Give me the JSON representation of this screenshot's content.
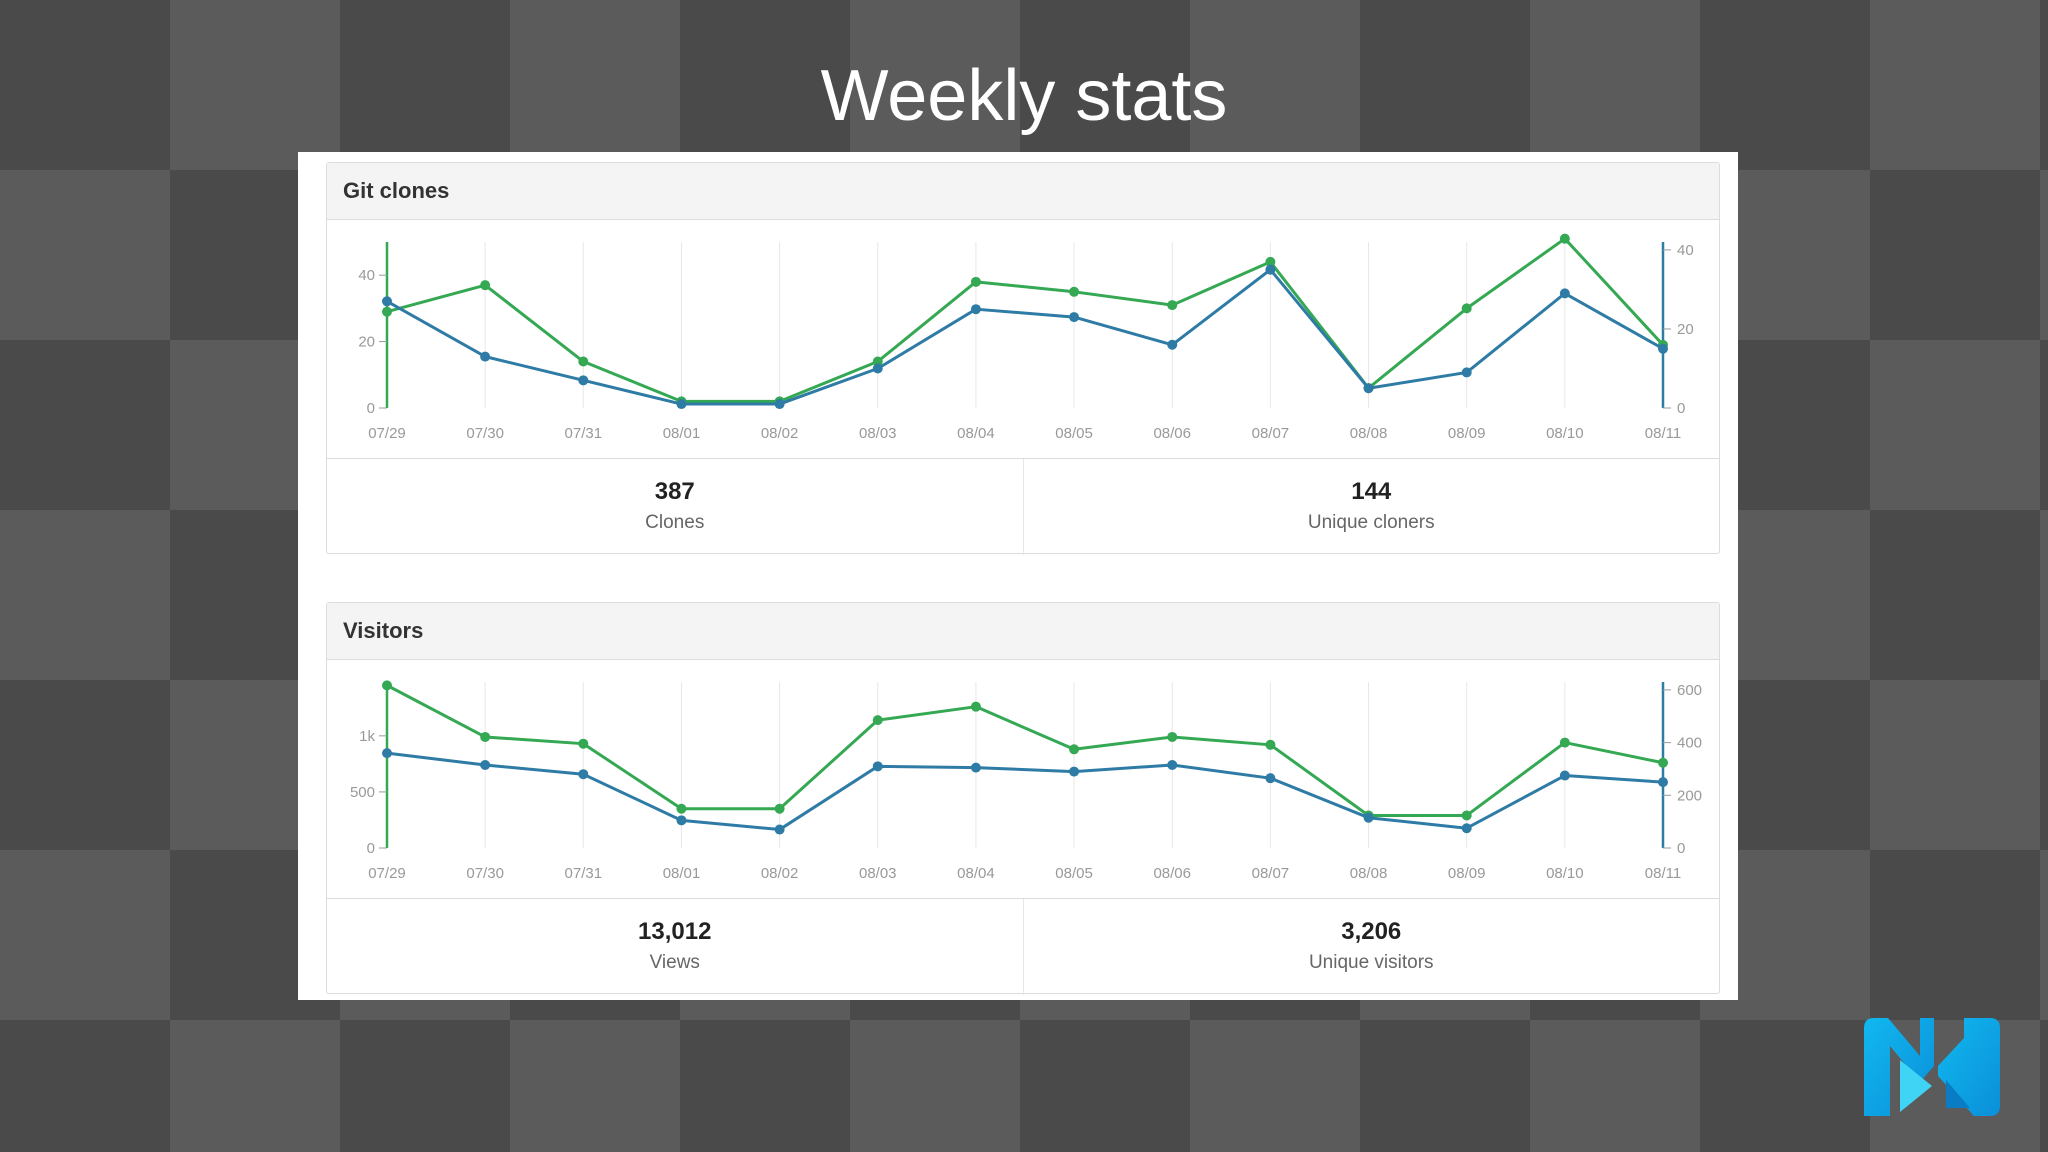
{
  "slide": {
    "title": "Weekly stats"
  },
  "colors": {
    "green": "#34a853",
    "blue": "#2e7ba6",
    "grid": "#e8e8e8",
    "tick": "#999999"
  },
  "panels": [
    {
      "title": "Git clones",
      "stats": [
        {
          "value": "387",
          "label": "Clones"
        },
        {
          "value": "144",
          "label": "Unique cloners"
        }
      ]
    },
    {
      "title": "Visitors",
      "stats": [
        {
          "value": "13,012",
          "label": "Views"
        },
        {
          "value": "3,206",
          "label": "Unique visitors"
        }
      ]
    }
  ],
  "chart_data": [
    {
      "type": "line",
      "x": [
        "07/29",
        "07/30",
        "07/31",
        "08/01",
        "08/02",
        "08/03",
        "08/04",
        "08/05",
        "08/06",
        "08/07",
        "08/08",
        "08/09",
        "08/10",
        "08/11"
      ],
      "series": [
        {
          "axis": "left",
          "color": "#34a853",
          "values": [
            29,
            37,
            14,
            2,
            2,
            14,
            38,
            35,
            31,
            44,
            6,
            30,
            51,
            19
          ]
        },
        {
          "axis": "right",
          "color": "#2e7ba6",
          "values": [
            27,
            13,
            7,
            1,
            1,
            10,
            25,
            23,
            16,
            35,
            5,
            9,
            29,
            15
          ]
        }
      ],
      "y_left": {
        "ticks": [
          "0",
          "20",
          "40"
        ],
        "tick_values": [
          0,
          20,
          40
        ],
        "range": [
          0,
          50
        ]
      },
      "y_right": {
        "ticks": [
          "0",
          "20",
          "40"
        ],
        "tick_values": [
          0,
          20,
          40
        ],
        "range": [
          0,
          42
        ]
      },
      "grid": true
    },
    {
      "type": "line",
      "x": [
        "07/29",
        "07/30",
        "07/31",
        "08/01",
        "08/02",
        "08/03",
        "08/04",
        "08/05",
        "08/06",
        "08/07",
        "08/08",
        "08/09",
        "08/10",
        "08/11"
      ],
      "series": [
        {
          "axis": "left",
          "color": "#34a853",
          "values": [
            1450,
            990,
            930,
            350,
            350,
            1140,
            1260,
            880,
            990,
            920,
            290,
            290,
            940,
            760
          ]
        },
        {
          "axis": "right",
          "color": "#2e7ba6",
          "values": [
            360,
            315,
            280,
            105,
            70,
            310,
            305,
            290,
            315,
            265,
            115,
            75,
            275,
            250
          ]
        }
      ],
      "y_left": {
        "ticks": [
          "0",
          "500",
          "1k"
        ],
        "tick_values": [
          0,
          500,
          1000
        ],
        "range": [
          0,
          1480
        ]
      },
      "y_right": {
        "ticks": [
          "0",
          "200",
          "400",
          "600"
        ],
        "tick_values": [
          0,
          200,
          400,
          600
        ],
        "range": [
          0,
          630
        ]
      },
      "grid": true
    }
  ]
}
